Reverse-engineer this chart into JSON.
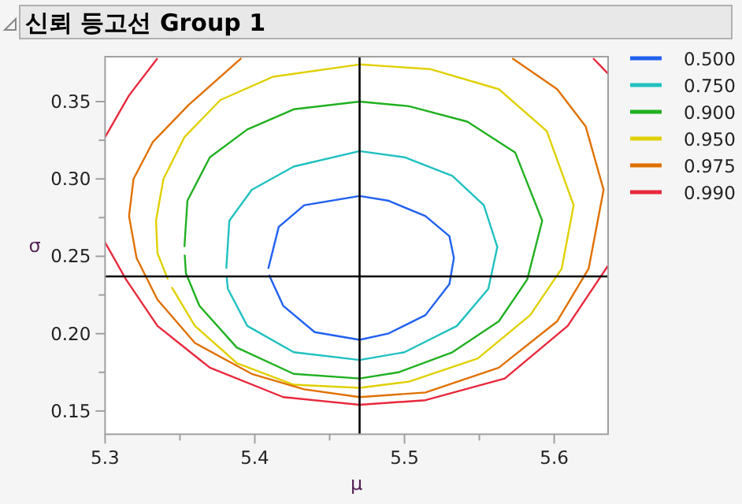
{
  "chart_data": {
    "type": "line",
    "title": "신뢰 등고선 Group 1",
    "xlabel": "μ",
    "ylabel": "σ",
    "legend": "right",
    "xlim": [
      5.3,
      5.636
    ],
    "ylim": [
      0.135,
      0.379
    ],
    "xticks": [
      5.3,
      {
        "value": 5.35,
        "label": null
      },
      5.4,
      {
        "value": 5.45,
        "label": null
      },
      5.5,
      {
        "value": 5.55,
        "label": null
      },
      5.6
    ],
    "yticks": [
      0.15,
      {
        "value": 0.175,
        "label": null
      },
      {
        "value": 0.2,
        "label": "0.20"
      },
      {
        "value": 0.225,
        "label": null
      },
      0.25,
      {
        "value": 0.275,
        "label": null
      },
      {
        "value": 0.3,
        "label": "0.30"
      },
      {
        "value": 0.325,
        "label": null
      },
      0.35
    ],
    "ref_lines": [
      {
        "axis": "x",
        "value": 5.47,
        "color": "#000000"
      },
      {
        "axis": "y",
        "value": 0.237,
        "color": "#000000"
      }
    ],
    "series": [
      {
        "name": "0.500",
        "color": "#2060f0",
        "x": [
          5.409,
          5.416,
          5.433,
          5.47,
          5.489,
          5.514,
          5.53,
          5.533,
          5.53,
          5.514,
          5.489,
          5.47,
          5.44,
          5.419,
          5.4095
        ],
        "values": [
          0.242,
          0.269,
          0.283,
          0.289,
          0.286,
          0.276,
          0.263,
          0.249,
          0.232,
          0.212,
          0.2,
          0.196,
          0.201,
          0.218,
          0.238
        ]
      },
      {
        "name": "0.750",
        "color": "#20c0c0",
        "x": [
          5.381,
          5.383,
          5.398,
          5.426,
          5.47,
          5.5,
          5.532,
          5.553,
          5.562,
          5.556,
          5.535,
          5.5,
          5.47,
          5.426,
          5.395,
          5.382,
          5.3812
        ],
        "values": [
          0.242,
          0.273,
          0.293,
          0.308,
          0.318,
          0.314,
          0.302,
          0.283,
          0.256,
          0.229,
          0.205,
          0.188,
          0.183,
          0.188,
          0.205,
          0.229,
          0.237
        ]
      },
      {
        "name": "0.900",
        "color": "#20b020",
        "x": [
          5.353,
          5.355,
          5.37,
          5.395,
          5.426,
          5.47,
          5.503,
          5.542,
          5.574,
          5.592,
          5.582,
          5.563,
          5.532,
          5.496,
          5.47,
          5.426,
          5.388,
          5.363,
          5.354,
          5.3532
        ],
        "values": [
          0.256,
          0.286,
          0.314,
          0.332,
          0.345,
          0.35,
          0.347,
          0.337,
          0.317,
          0.273,
          0.235,
          0.208,
          0.188,
          0.175,
          0.171,
          0.174,
          0.191,
          0.218,
          0.239,
          0.251
        ]
      },
      {
        "name": "0.950",
        "color": "#e0d000",
        "x": [
          5.342,
          5.335,
          5.334,
          5.339,
          5.353,
          5.377,
          5.412,
          5.47,
          5.517,
          5.563,
          5.595,
          5.613,
          5.605,
          5.584,
          5.549,
          5.503,
          5.47,
          5.426,
          5.388,
          5.36,
          5.3445
        ],
        "values": [
          0.235,
          0.252,
          0.273,
          0.3,
          0.327,
          0.351,
          0.366,
          0.374,
          0.371,
          0.358,
          0.331,
          0.283,
          0.242,
          0.212,
          0.184,
          0.169,
          0.165,
          0.167,
          0.181,
          0.205,
          0.23
        ]
      },
      {
        "name": "0.975",
        "color": "#e07000",
        "x": [
          5.391,
          5.356,
          5.332,
          5.319,
          5.316,
          5.321,
          5.335,
          5.36,
          5.398,
          5.433,
          5.47,
          5.514,
          5.563,
          5.602,
          5.623,
          5.633,
          5.621,
          5.602,
          5.572
        ],
        "values": [
          0.378,
          0.348,
          0.324,
          0.3,
          0.276,
          0.249,
          0.222,
          0.194,
          0.174,
          0.164,
          0.159,
          0.162,
          0.178,
          0.208,
          0.242,
          0.293,
          0.334,
          0.358,
          0.378
        ]
      },
      {
        "name": "0.990",
        "color": "#e8283c",
        "x": [
          5.335,
          5.316,
          5.3,
          null,
          5.3,
          5.314,
          5.335,
          5.37,
          5.419,
          5.47,
          5.514,
          5.567,
          5.609,
          5.636,
          null,
          5.626,
          5.636
        ],
        "values": [
          0.378,
          0.354,
          0.327,
          null,
          0.259,
          0.235,
          0.205,
          0.178,
          0.159,
          0.154,
          0.157,
          0.171,
          0.205,
          0.244,
          null,
          0.378,
          0.368
        ]
      }
    ]
  }
}
